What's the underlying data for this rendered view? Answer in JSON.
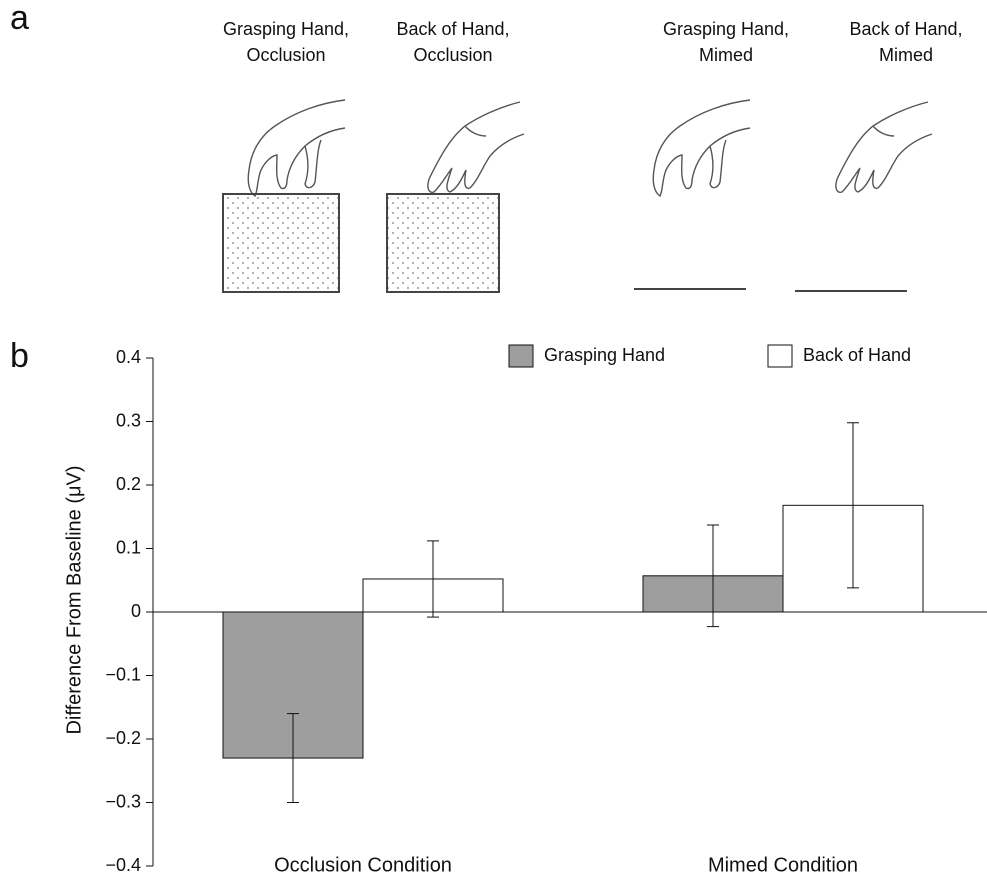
{
  "panel_a": {
    "label": "a",
    "captions": [
      [
        "Grasping Hand,",
        "Occlusion"
      ],
      [
        "Back of Hand,",
        "Occlusion"
      ],
      [
        "Grasping Hand,",
        "Mimed"
      ],
      [
        "Back of Hand,",
        "Mimed"
      ]
    ]
  },
  "chart_data": {
    "type": "bar",
    "panel_label": "b",
    "ylabel": "Difference From Baseline (μV)",
    "categories": [
      "Occlusion Condition",
      "Mimed Condition"
    ],
    "series": [
      {
        "name": "Grasping Hand",
        "color": "#9e9e9e",
        "values": [
          -0.23,
          0.057
        ],
        "errors": [
          0.07,
          0.08
        ]
      },
      {
        "name": "Back of Hand",
        "color": "#ffffff",
        "values": [
          0.052,
          0.168
        ],
        "errors": [
          0.06,
          0.13
        ]
      }
    ],
    "ylim": [
      -0.4,
      0.4
    ],
    "yticks": [
      {
        "value": -0.4,
        "label": "−0.4"
      },
      {
        "value": -0.3,
        "label": "−0.3"
      },
      {
        "value": -0.2,
        "label": "−0.2"
      },
      {
        "value": -0.1,
        "label": "−0.1"
      },
      0,
      0.1,
      0.2,
      0.3,
      0.4
    ],
    "legend": "top-right"
  }
}
